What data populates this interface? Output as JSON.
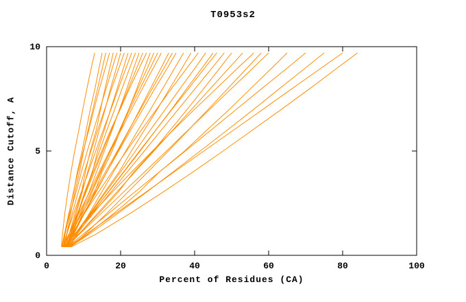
{
  "chart_data": {
    "type": "line",
    "title": "T0953s2",
    "xlabel": "Percent of Residues (CA)",
    "ylabel": "Distance Cutoff, A",
    "xlim": [
      0,
      100
    ],
    "ylim": [
      0,
      10
    ],
    "x_ticks": [
      0,
      20,
      40,
      60,
      80,
      100
    ],
    "y_ticks": [
      0,
      5,
      10
    ],
    "grid": false,
    "legend": "none",
    "line_color": "#ff8c00",
    "axis_color": "#000000",
    "background": "#ffffff",
    "y_levels": [
      0.4,
      1,
      2,
      3,
      4,
      5,
      6,
      7,
      8,
      9,
      9.7
    ],
    "series": [
      {
        "x": [
          4.0,
          4.3,
          4.9,
          5.7,
          6.6,
          7.6,
          8.7,
          9.8,
          10.9,
          12.1,
          13.0
        ]
      },
      {
        "x": [
          4.1,
          4.8,
          6.0,
          7.3,
          8.3,
          9.6,
          10.7,
          11.8,
          13.1,
          14.2,
          15.0
        ]
      },
      {
        "x": [
          4.9,
          5.4,
          6.5,
          7.6,
          8.9,
          10.0,
          11.2,
          12.5,
          13.8,
          15.1,
          16.0
        ]
      },
      {
        "x": [
          4.5,
          5.0,
          6.1,
          7.2,
          8.5,
          9.9,
          11.4,
          12.8,
          14.3,
          15.9,
          17.0
        ]
      },
      {
        "x": [
          5.0,
          6.1,
          7.7,
          9.4,
          10.5,
          11.8,
          13.4,
          14.6,
          15.8,
          17.1,
          18.0
        ]
      },
      {
        "x": [
          4.2,
          4.9,
          6.3,
          7.9,
          9.4,
          11.0,
          12.7,
          14.4,
          16.1,
          17.8,
          19.0
        ]
      },
      {
        "x": [
          5.5,
          6.4,
          8.0,
          9.6,
          11.1,
          12.7,
          14.2,
          15.8,
          17.3,
          18.9,
          20.0
        ]
      },
      {
        "x": [
          4.8,
          5.5,
          6.9,
          8.5,
          10.2,
          12.0,
          13.8,
          15.7,
          17.6,
          19.6,
          21.0
        ]
      },
      {
        "x": [
          5.2,
          6.4,
          8.4,
          10.2,
          12.4,
          13.8,
          15.6,
          17.3,
          19.1,
          20.8,
          22.0
        ]
      },
      {
        "x": [
          4.4,
          5.4,
          7.3,
          9.3,
          11.3,
          13.3,
          15.3,
          17.4,
          19.4,
          21.5,
          23.0
        ]
      },
      {
        "x": [
          6.0,
          6.9,
          8.6,
          10.4,
          12.3,
          14.3,
          16.3,
          18.4,
          20.4,
          22.5,
          24.0
        ]
      },
      {
        "x": [
          5.0,
          6.7,
          9.1,
          11.4,
          13.5,
          15.6,
          17.7,
          19.7,
          21.7,
          23.6,
          25.0
        ]
      },
      {
        "x": [
          4.6,
          6.0,
          8.3,
          10.6,
          12.9,
          15.2,
          17.5,
          19.8,
          22.1,
          24.4,
          26.0
        ]
      },
      {
        "x": [
          5.8,
          6.6,
          8.4,
          10.4,
          12.6,
          14.9,
          17.3,
          19.9,
          22.4,
          25.1,
          27.0
        ]
      },
      {
        "x": [
          5.1,
          7.3,
          10.2,
          12.9,
          15.0,
          17.7,
          20.0,
          22.2,
          24.4,
          26.5,
          28.0
        ]
      },
      {
        "x": [
          5.7,
          7.2,
          9.7,
          12.2,
          14.7,
          17.2,
          19.7,
          22.2,
          24.7,
          27.3,
          29.0
        ]
      },
      {
        "x": [
          4.3,
          6.0,
          8.7,
          11.5,
          14.2,
          17.0,
          19.8,
          22.5,
          25.3,
          28.1,
          30.0
        ]
      },
      {
        "x": [
          5.6,
          6.8,
          9.3,
          11.9,
          14.5,
          17.3,
          20.1,
          23.0,
          25.9,
          28.9,
          31.0
        ]
      },
      {
        "x": [
          4.9,
          7.0,
          10.2,
          13.3,
          16.3,
          19.3,
          22.3,
          25.2,
          28.1,
          31.0,
          33.0
        ]
      },
      {
        "x": [
          4.4,
          6.3,
          9.5,
          12.7,
          15.9,
          19.1,
          22.2,
          25.4,
          28.6,
          31.8,
          34.0
        ]
      },
      {
        "x": [
          5.3,
          7.0,
          10.0,
          13.1,
          16.3,
          19.5,
          22.7,
          26.0,
          29.3,
          32.7,
          35.0
        ]
      },
      {
        "x": [
          6.2,
          8.2,
          11.5,
          14.8,
          18.1,
          21.4,
          24.7,
          28.1,
          31.4,
          34.7,
          37.0
        ]
      },
      {
        "x": [
          4.7,
          7.6,
          11.7,
          15.6,
          19.6,
          22.9,
          26.4,
          29.9,
          33.3,
          36.7,
          39.0
        ]
      },
      {
        "x": [
          5.0,
          6.8,
          10.2,
          13.9,
          17.7,
          21.6,
          25.6,
          29.7,
          33.8,
          38.0,
          41.0
        ]
      },
      {
        "x": [
          5.4,
          7.8,
          11.9,
          15.9,
          20.0,
          24.0,
          28.0,
          32.1,
          36.1,
          40.2,
          43.0
        ]
      },
      {
        "x": [
          4.5,
          7.5,
          12.1,
          16.6,
          20.9,
          25.3,
          29.5,
          33.8,
          37.9,
          42.1,
          45.0
        ]
      },
      {
        "x": [
          6.0,
          8.2,
          12.3,
          16.5,
          20.8,
          25.1,
          29.5,
          33.9,
          38.4,
          42.8,
          46.0
        ]
      },
      {
        "x": [
          5.2,
          8.0,
          12.6,
          17.2,
          21.8,
          26.4,
          31.0,
          35.6,
          40.2,
          44.8,
          48.0
        ]
      },
      {
        "x": [
          4.8,
          8.6,
          14.1,
          19.2,
          23.6,
          28.8,
          33.4,
          38.0,
          42.5,
          46.9,
          50.0
        ]
      },
      {
        "x": [
          5.5,
          8.6,
          13.7,
          18.8,
          23.9,
          29.0,
          34.1,
          39.2,
          44.3,
          49.4,
          53.0
        ]
      },
      {
        "x": [
          5.0,
          7.5,
          12.3,
          17.6,
          23.0,
          28.6,
          34.2,
          40.0,
          45.9,
          51.8,
          56.0
        ]
      },
      {
        "x": [
          6.5,
          10.3,
          16.2,
          21.8,
          27.4,
          32.9,
          38.3,
          43.7,
          49.0,
          54.3,
          58.0
        ]
      },
      {
        "x": [
          5.3,
          8.8,
          14.7,
          20.6,
          26.5,
          32.4,
          38.2,
          44.1,
          50.0,
          55.9,
          60.0
        ]
      },
      {
        "x": [
          6.0,
          11.0,
          18.1,
          24.8,
          30.5,
          37.3,
          43.3,
          49.4,
          55.2,
          61.0,
          65.0
        ]
      },
      {
        "x": [
          5.6,
          9.8,
          16.7,
          23.6,
          30.5,
          37.5,
          44.4,
          51.3,
          58.2,
          65.2,
          70.0
        ]
      },
      {
        "x": [
          6.3,
          11.4,
          19.2,
          26.8,
          34.2,
          41.5,
          48.8,
          56.0,
          63.0,
          70.1,
          75.0
        ]
      },
      {
        "x": [
          5.8,
          10.6,
          18.6,
          26.6,
          34.5,
          42.5,
          50.5,
          58.5,
          66.4,
          74.4,
          80.0
        ]
      },
      {
        "x": [
          6.6,
          13.2,
          22.5,
          31.2,
          39.6,
          47.7,
          55.6,
          63.5,
          71.2,
          78.7,
          84.0
        ]
      }
    ]
  }
}
